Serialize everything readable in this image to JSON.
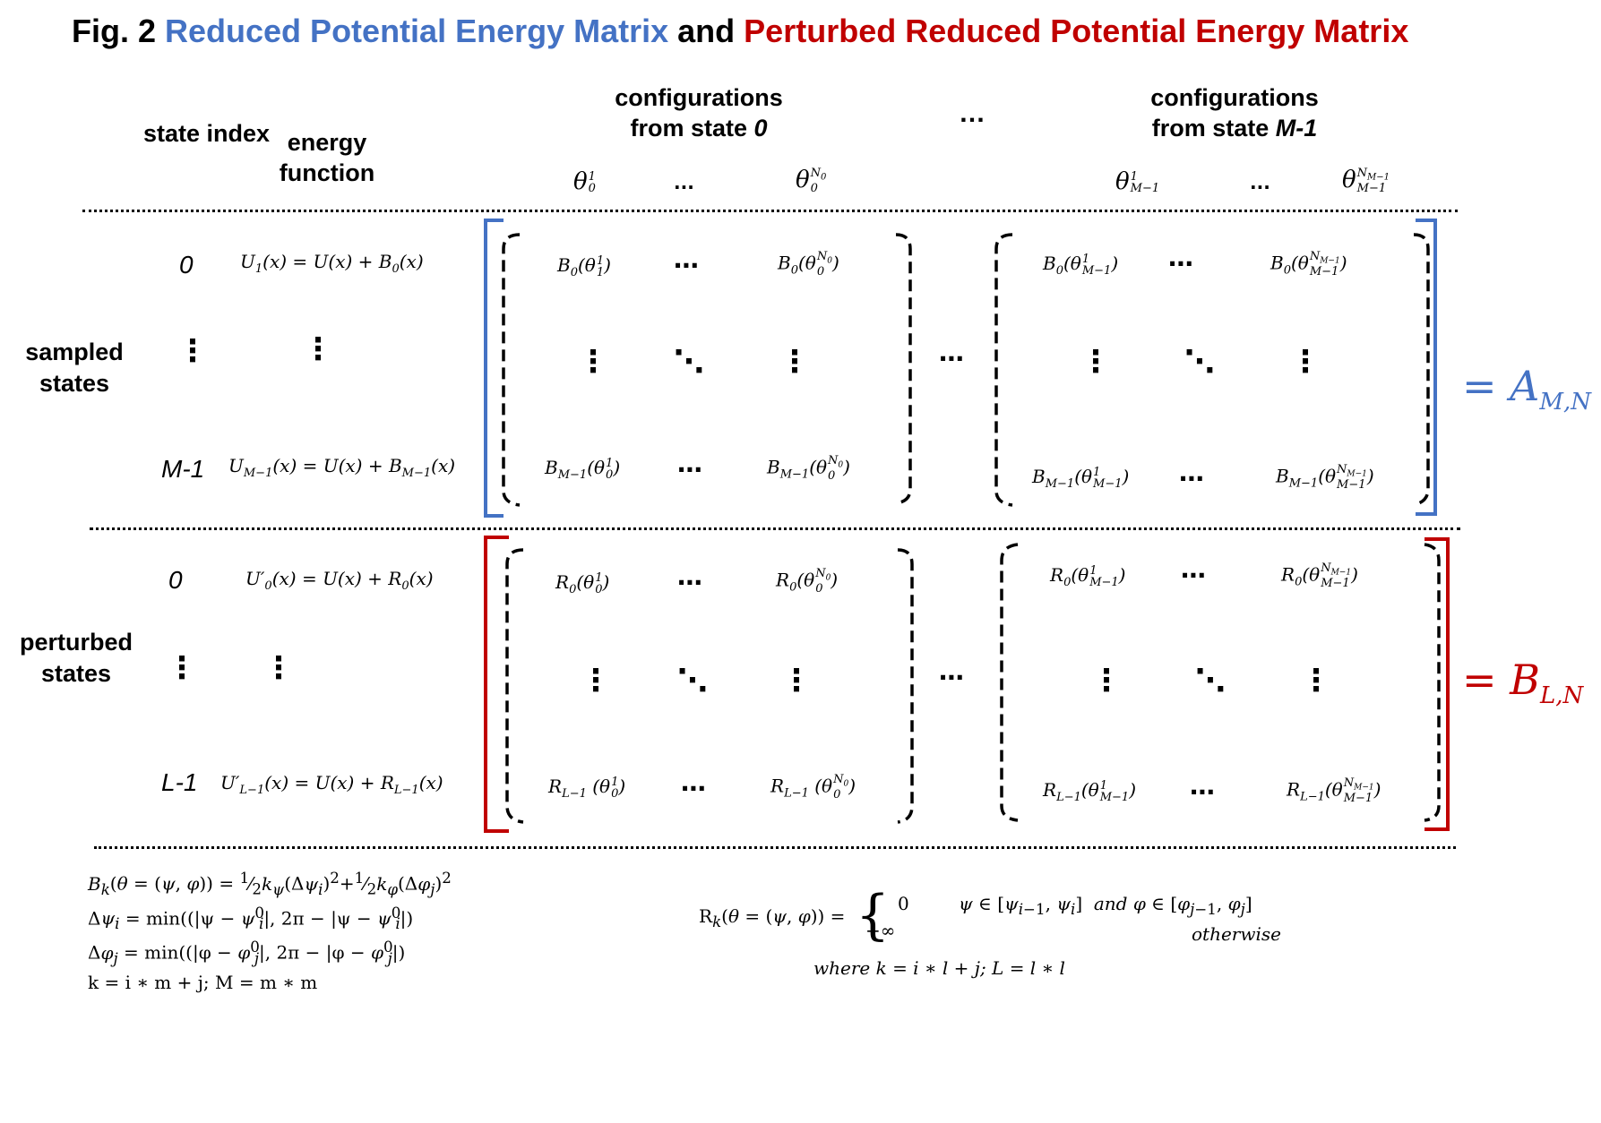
{
  "title": {
    "prefix": "Fig. 2 ",
    "part1": "Reduced Potential Energy Matrix",
    "middle": " and ",
    "part2": "Perturbed Reduced Potential Energy Matrix"
  },
  "colors": {
    "blue": "#4472c4",
    "red": "#c00000",
    "black": "#000000"
  },
  "headers": {
    "state_index": "state index",
    "energy_function": "energy function",
    "config_state0_line1": "configurations",
    "config_state0_line2": "from state ",
    "config_state0_italic": "0",
    "config_stateM_line1": "configurations",
    "config_stateM_line2": "from state ",
    "config_stateM_italic": "M-1",
    "between_dots": "…",
    "col_theta0_1": "θ",
    "col_dots": "...",
    "col_dots2": "..."
  },
  "groups": {
    "sampled_label": "sampled states",
    "perturbed_label": "perturbed states"
  },
  "sampled_rows": [
    {
      "index": "0",
      "energy": "U₁(x) = U(x) + B₀(x)"
    },
    {
      "index": "⋮",
      "energy": "⋮"
    },
    {
      "index": "M-1",
      "energy": "U_{M−1}(x) = U(x) + B_{M−1}(x)"
    }
  ],
  "perturbed_rows": [
    {
      "index": "0",
      "energy": "U′₀(x) = U(x) + R₀(x)"
    },
    {
      "index": "⋮",
      "energy": "⋮"
    },
    {
      "index": "L-1",
      "energy": "U′_{L−1}(x) = U(x) + R_{L−1}(x)"
    }
  ],
  "matrix_results": {
    "A": "= A_{M,N}",
    "B": "= B_{L,N}"
  },
  "footnotes": {
    "left": [
      "B_k(θ = (ψ, φ)) = ½ k_ψ(Δψ_i)² + ½ k_φ(Δφ_j)²",
      "Δψ_i = min((|ψ − ψ_i⁰|, 2π − |ψ − ψ_i⁰|)",
      "Δφ_j = min((|φ − φ_j⁰|, 2π − |φ − φ_j⁰|)",
      "k = i ∗ m + j; M = m ∗ m"
    ],
    "right_lhs": "R_k(θ = (ψ, φ)) =",
    "right_case1_value": "0",
    "right_case1_condition": "ψ ∈ [ψ_{i−1}, ψ_i]  and  φ ∈ [φ_{j−1}, φ_j]",
    "right_case2_value": "+∞",
    "right_case2_condition": "otherwise",
    "right_where": "where k = i ∗ l + j; L = l ∗ l"
  }
}
